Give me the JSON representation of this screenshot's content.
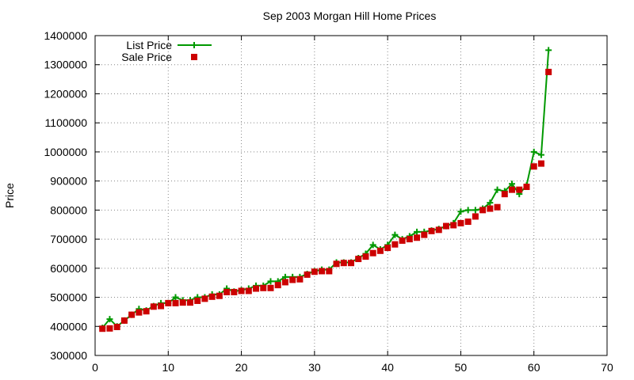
{
  "chart_data": {
    "type": "line",
    "title": "Sep 2003 Morgan Hill Home Prices",
    "xlabel": "",
    "ylabel": "Price",
    "xlim": [
      0,
      70
    ],
    "ylim": [
      300000,
      1400000
    ],
    "xticks": [
      0,
      10,
      20,
      30,
      40,
      50,
      60,
      70
    ],
    "yticks": [
      300000,
      400000,
      500000,
      600000,
      700000,
      800000,
      900000,
      1000000,
      1100000,
      1200000,
      1300000,
      1400000
    ],
    "grid": true,
    "legend_position": "top-left",
    "x": [
      1,
      2,
      3,
      4,
      5,
      6,
      7,
      8,
      9,
      10,
      11,
      12,
      13,
      14,
      15,
      16,
      17,
      18,
      19,
      20,
      21,
      22,
      23,
      24,
      25,
      26,
      27,
      28,
      29,
      30,
      31,
      32,
      33,
      34,
      35,
      36,
      37,
      38,
      39,
      40,
      41,
      42,
      43,
      44,
      45,
      46,
      47,
      48,
      49,
      50,
      51,
      52,
      53,
      54,
      55,
      56,
      57,
      58,
      59,
      60,
      61,
      62
    ],
    "series": [
      {
        "name": "List Price",
        "color": "#009900",
        "marker": "plus",
        "style": "linespoints",
        "values": [
          395000,
          425000,
          400000,
          420000,
          440000,
          460000,
          455000,
          470000,
          480000,
          480000,
          500000,
          490000,
          490000,
          500000,
          500000,
          510000,
          510000,
          530000,
          520000,
          525000,
          530000,
          540000,
          540000,
          555000,
          555000,
          570000,
          570000,
          570000,
          580000,
          590000,
          595000,
          595000,
          620000,
          620000,
          620000,
          635000,
          650000,
          680000,
          665000,
          680000,
          715000,
          700000,
          710000,
          725000,
          725000,
          730000,
          735000,
          745000,
          755000,
          795000,
          800000,
          800000,
          805000,
          825000,
          870000,
          865000,
          890000,
          855000,
          885000,
          1000000,
          990000,
          1350000
        ]
      },
      {
        "name": "Sale Price",
        "color": "#cc0000",
        "marker": "square",
        "style": "points",
        "values": [
          392000,
          393000,
          398000,
          420000,
          440000,
          448000,
          452000,
          468000,
          470000,
          480000,
          480000,
          482000,
          482000,
          488000,
          495000,
          502000,
          505000,
          518000,
          518000,
          522000,
          522000,
          530000,
          532000,
          532000,
          542000,
          552000,
          560000,
          562000,
          578000,
          588000,
          590000,
          590000,
          615000,
          618000,
          618000,
          632000,
          640000,
          652000,
          660000,
          670000,
          682000,
          695000,
          700000,
          705000,
          715000,
          728000,
          732000,
          745000,
          748000,
          755000,
          760000,
          778000,
          800000,
          805000,
          810000,
          855000,
          870000,
          870000,
          880000,
          950000,
          960000,
          1275000
        ]
      }
    ]
  }
}
